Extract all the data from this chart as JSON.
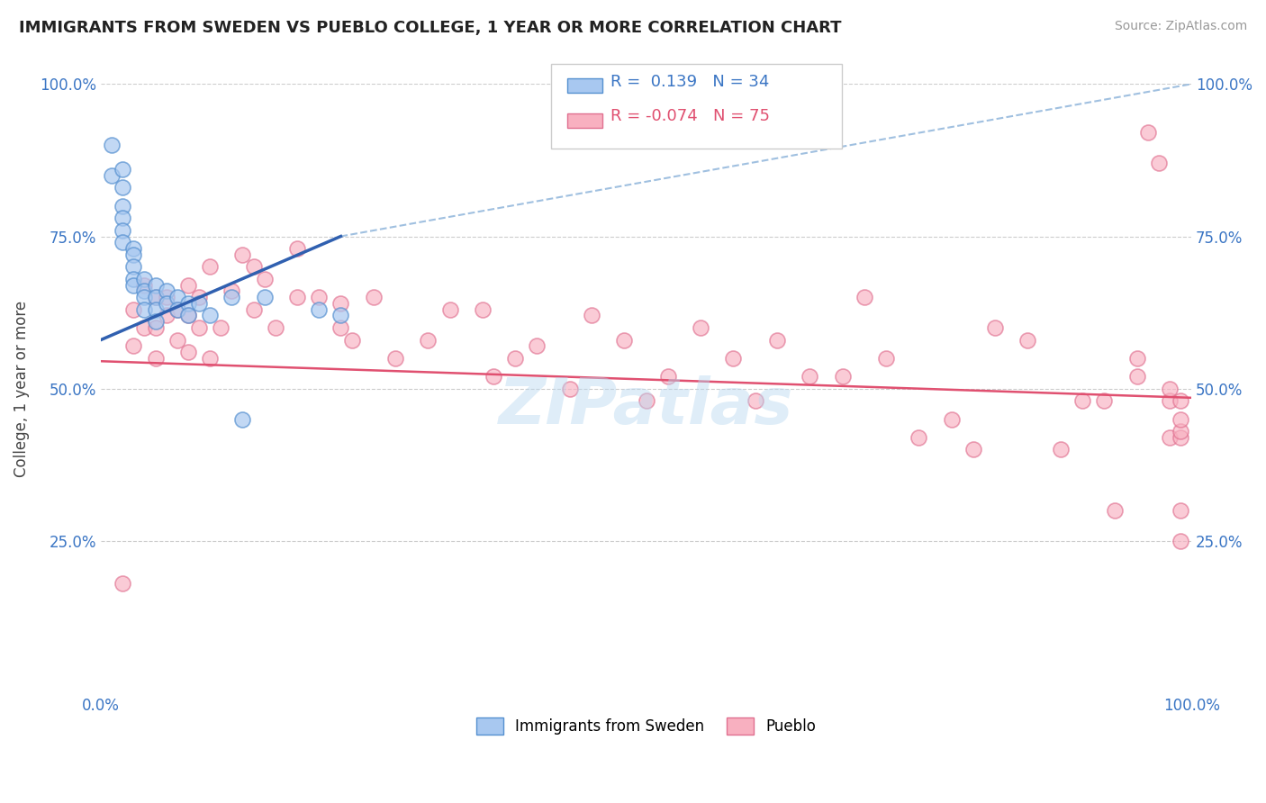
{
  "title": "IMMIGRANTS FROM SWEDEN VS PUEBLO COLLEGE, 1 YEAR OR MORE CORRELATION CHART",
  "source_text": "Source: ZipAtlas.com",
  "ylabel": "College, 1 year or more",
  "xlim": [
    0.0,
    1.0
  ],
  "ylim": [
    0.0,
    1.0
  ],
  "xtick_labels": [
    "0.0%",
    "100.0%"
  ],
  "ytick_labels": [
    "25.0%",
    "50.0%",
    "75.0%",
    "100.0%"
  ],
  "ytick_positions": [
    0.25,
    0.5,
    0.75,
    1.0
  ],
  "xtick_positions": [
    0.0,
    1.0
  ],
  "legend_r_blue": "0.139",
  "legend_n_blue": "34",
  "legend_r_pink": "-0.074",
  "legend_n_pink": "75",
  "blue_fill": "#A8C8F0",
  "blue_edge": "#5590D0",
  "pink_fill": "#F8B0C0",
  "pink_edge": "#E07090",
  "blue_line_color": "#3060B0",
  "pink_line_color": "#E05070",
  "dash_line_color": "#A0C0E0",
  "watermark": "ZIPatlas",
  "blue_scatter_x": [
    0.01,
    0.01,
    0.02,
    0.02,
    0.02,
    0.02,
    0.02,
    0.02,
    0.03,
    0.03,
    0.03,
    0.03,
    0.03,
    0.04,
    0.04,
    0.04,
    0.04,
    0.05,
    0.05,
    0.05,
    0.05,
    0.06,
    0.06,
    0.07,
    0.07,
    0.08,
    0.08,
    0.09,
    0.1,
    0.12,
    0.13,
    0.15,
    0.2,
    0.22
  ],
  "blue_scatter_y": [
    0.9,
    0.85,
    0.86,
    0.83,
    0.8,
    0.78,
    0.76,
    0.74,
    0.73,
    0.72,
    0.7,
    0.68,
    0.67,
    0.68,
    0.66,
    0.65,
    0.63,
    0.67,
    0.65,
    0.63,
    0.61,
    0.66,
    0.64,
    0.65,
    0.63,
    0.64,
    0.62,
    0.64,
    0.62,
    0.65,
    0.45,
    0.65,
    0.63,
    0.62
  ],
  "pink_scatter_x": [
    0.02,
    0.03,
    0.03,
    0.04,
    0.04,
    0.05,
    0.05,
    0.05,
    0.06,
    0.06,
    0.07,
    0.07,
    0.08,
    0.08,
    0.08,
    0.09,
    0.09,
    0.1,
    0.1,
    0.11,
    0.12,
    0.13,
    0.14,
    0.14,
    0.15,
    0.16,
    0.18,
    0.18,
    0.2,
    0.22,
    0.22,
    0.23,
    0.25,
    0.27,
    0.3,
    0.32,
    0.35,
    0.36,
    0.38,
    0.4,
    0.43,
    0.45,
    0.48,
    0.5,
    0.52,
    0.55,
    0.58,
    0.6,
    0.62,
    0.65,
    0.68,
    0.7,
    0.72,
    0.75,
    0.78,
    0.8,
    0.82,
    0.85,
    0.88,
    0.9,
    0.92,
    0.93,
    0.95,
    0.95,
    0.96,
    0.97,
    0.98,
    0.98,
    0.98,
    0.99,
    0.99,
    0.99,
    0.99,
    0.99,
    0.99
  ],
  "pink_scatter_y": [
    0.18,
    0.63,
    0.57,
    0.67,
    0.6,
    0.65,
    0.6,
    0.55,
    0.65,
    0.62,
    0.63,
    0.58,
    0.67,
    0.62,
    0.56,
    0.65,
    0.6,
    0.7,
    0.55,
    0.6,
    0.66,
    0.72,
    0.7,
    0.63,
    0.68,
    0.6,
    0.73,
    0.65,
    0.65,
    0.64,
    0.6,
    0.58,
    0.65,
    0.55,
    0.58,
    0.63,
    0.63,
    0.52,
    0.55,
    0.57,
    0.5,
    0.62,
    0.58,
    0.48,
    0.52,
    0.6,
    0.55,
    0.48,
    0.58,
    0.52,
    0.52,
    0.65,
    0.55,
    0.42,
    0.45,
    0.4,
    0.6,
    0.58,
    0.4,
    0.48,
    0.48,
    0.3,
    0.55,
    0.52,
    0.92,
    0.87,
    0.42,
    0.48,
    0.5,
    0.48,
    0.42,
    0.43,
    0.45,
    0.25,
    0.3
  ],
  "blue_line_x_start": 0.0,
  "blue_line_y_start": 0.58,
  "blue_line_x_end": 0.22,
  "blue_line_y_end": 0.75,
  "dash_line_x_start": 0.22,
  "dash_line_y_start": 0.75,
  "dash_line_x_end": 1.0,
  "dash_line_y_end": 1.0,
  "pink_line_x_start": 0.0,
  "pink_line_y_start": 0.545,
  "pink_line_x_end": 1.0,
  "pink_line_y_end": 0.485
}
